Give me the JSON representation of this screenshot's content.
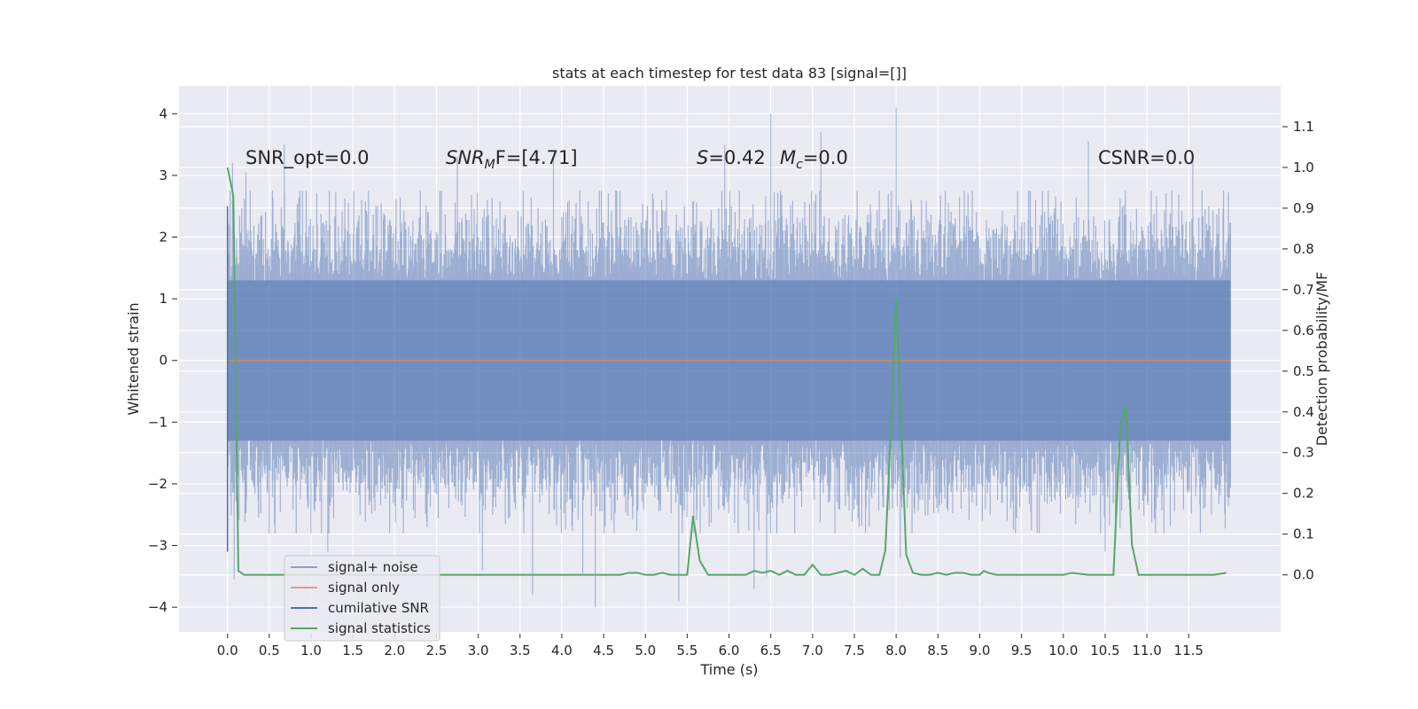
{
  "chart_data": {
    "type": "line",
    "title": "stats at each timestep for test data 83 [signal=[]]",
    "xlabel": "Time (s)",
    "ylabel": "Whitened strain",
    "y2label": "Detection probability/MF",
    "xlim": [
      -0.58,
      12.6
    ],
    "ylim": [
      -4.4,
      4.45
    ],
    "y2lim": [
      -0.14,
      1.2
    ],
    "xticks": [
      0.0,
      0.5,
      1.0,
      1.5,
      2.0,
      2.5,
      3.0,
      3.5,
      4.0,
      4.5,
      5.0,
      5.5,
      6.0,
      6.5,
      7.0,
      7.5,
      8.0,
      8.5,
      9.0,
      9.5,
      10.0,
      10.5,
      11.0,
      11.5
    ],
    "xtick_labels": [
      "0.0",
      "0.5",
      "1.0",
      "1.5",
      "2.0",
      "2.5",
      "3.0",
      "3.5",
      "4.0",
      "4.5",
      "5.0",
      "5.5",
      "6.0",
      "6.5",
      "7.0",
      "7.5",
      "8.0",
      "8.5",
      "9.0",
      "9.5",
      "10.0",
      "10.5",
      "11.0",
      "11.5"
    ],
    "yticks": [
      -4,
      -3,
      -2,
      -1,
      0,
      1,
      2,
      3,
      4
    ],
    "ytick_labels": [
      "−4",
      "−3",
      "−2",
      "−1",
      "0",
      "1",
      "2",
      "3",
      "4"
    ],
    "y2ticks": [
      0.0,
      0.1,
      0.2,
      0.3,
      0.4,
      0.5,
      0.6,
      0.7,
      0.8,
      0.9,
      1.0,
      1.1
    ],
    "y2tick_labels": [
      "0.0",
      "0.1",
      "0.2",
      "0.3",
      "0.4",
      "0.5",
      "0.6",
      "0.7",
      "0.8",
      "0.9",
      "1.0",
      "1.1"
    ],
    "grid": true,
    "legend_position": "lower-left",
    "annotations": {
      "snr_opt": "SNR_opt=0.0",
      "snr_mf_main": "SNR",
      "snr_mf_sub": "M",
      "snr_mf_rest": "F=[4.71]",
      "s_var": "S",
      "s_val": "=0.42",
      "mc_var": "M",
      "mc_sub": "c",
      "mc_val": "=0.0",
      "csnr": "CSNR=0.0"
    },
    "series": [
      {
        "name": "signal+ noise",
        "color": "#4c72b0",
        "envelope": {
          "t_start": 0.0,
          "t_end": 12.0,
          "typical_range": [
            -2.3,
            2.3
          ],
          "peaks_high": [
            [
              0.06,
              3.2
            ],
            [
              0.22,
              3.05
            ],
            [
              0.68,
              3.5
            ],
            [
              2.75,
              3.3
            ],
            [
              3.9,
              3.3
            ],
            [
              5.95,
              3.5
            ],
            [
              6.5,
              4.0
            ],
            [
              7.1,
              3.7
            ],
            [
              8.0,
              4.1
            ],
            [
              10.3,
              3.55
            ],
            [
              11.55,
              3.3
            ]
          ],
          "peaks_low": [
            [
              0.08,
              -3.55
            ],
            [
              1.2,
              -3.1
            ],
            [
              3.05,
              -3.4
            ],
            [
              3.65,
              -3.8
            ],
            [
              4.25,
              -3.45
            ],
            [
              4.4,
              -4.0
            ],
            [
              5.4,
              -3.9
            ],
            [
              6.3,
              -3.7
            ],
            [
              6.45,
              -3.5
            ],
            [
              8.05,
              -3.2
            ],
            [
              10.5,
              -3.1
            ]
          ]
        }
      },
      {
        "name": "signal only",
        "color": "#dd8452",
        "x": [
          0.0,
          12.0
        ],
        "y": [
          0.0,
          0.0
        ]
      },
      {
        "name": "cumilative SNR",
        "color": "#4c72b0",
        "x": [
          0.0,
          0.0
        ],
        "y": [
          -3.1,
          2.5
        ]
      },
      {
        "name": "signal statistics",
        "color": "#55a868",
        "axis": "right",
        "x": [
          0.0,
          0.07,
          0.13,
          0.2,
          0.3,
          0.5,
          1.0,
          2.0,
          3.0,
          4.0,
          4.5,
          4.7,
          4.8,
          4.9,
          5.0,
          5.1,
          5.2,
          5.3,
          5.4,
          5.5,
          5.57,
          5.65,
          5.75,
          5.85,
          6.0,
          6.2,
          6.3,
          6.4,
          6.5,
          6.6,
          6.7,
          6.8,
          6.9,
          7.0,
          7.1,
          7.2,
          7.3,
          7.4,
          7.5,
          7.6,
          7.7,
          7.8,
          7.87,
          7.94,
          8.0,
          8.06,
          8.12,
          8.2,
          8.3,
          8.4,
          8.5,
          8.6,
          8.7,
          8.8,
          8.9,
          9.0,
          9.05,
          9.1,
          9.2,
          9.3,
          9.5,
          9.7,
          9.9,
          10.0,
          10.1,
          10.3,
          10.5,
          10.6,
          10.68,
          10.75,
          10.82,
          10.9,
          11.0,
          11.2,
          11.5,
          11.8,
          11.95
        ],
        "y": [
          1.0,
          0.93,
          0.01,
          0.0,
          0.0,
          0.0,
          0.0,
          0.0,
          0.0,
          0.0,
          0.0,
          0.0,
          0.005,
          0.005,
          0.0,
          0.0,
          0.005,
          0.0,
          0.0,
          0.0,
          0.145,
          0.035,
          0.0,
          0.0,
          0.0,
          0.0,
          0.01,
          0.005,
          0.01,
          0.0,
          0.01,
          0.0,
          0.0,
          0.025,
          0.0,
          0.0,
          0.005,
          0.01,
          0.0,
          0.015,
          0.0,
          0.0,
          0.06,
          0.37,
          0.68,
          0.37,
          0.05,
          0.005,
          0.0,
          0.0,
          0.005,
          0.0,
          0.005,
          0.005,
          0.0,
          0.0,
          0.01,
          0.005,
          0.0,
          0.0,
          0.0,
          0.0,
          0.0,
          0.0,
          0.005,
          0.0,
          0.0,
          0.0,
          0.36,
          0.415,
          0.075,
          0.0,
          0.0,
          0.0,
          0.0,
          0.0,
          0.005
        ]
      }
    ]
  }
}
